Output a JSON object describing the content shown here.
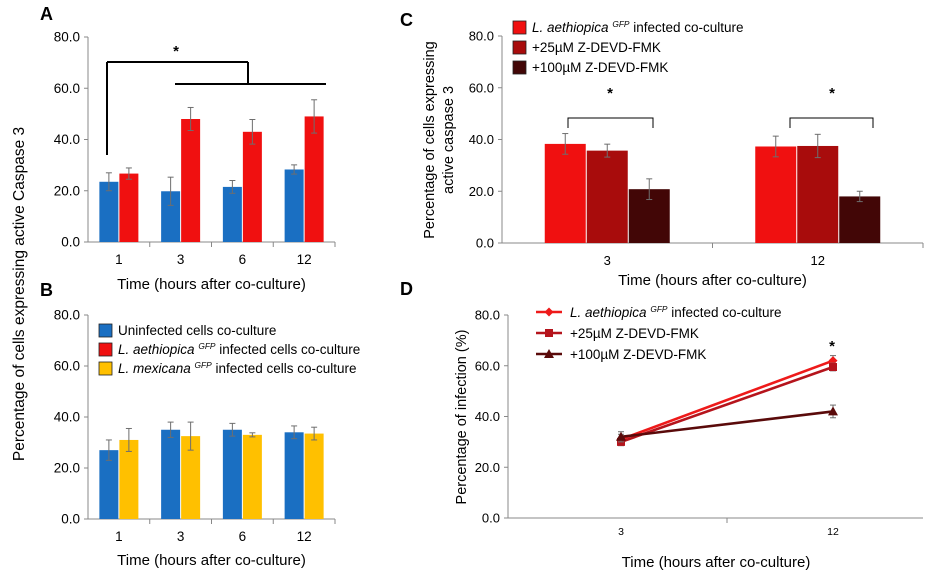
{
  "figure": {
    "panel_letters": [
      "A",
      "B",
      "C",
      "D"
    ],
    "shared_ylabel": "Percentage of cells expressing active Caspase 3"
  },
  "colors": {
    "uninfected": "#1a6fc2",
    "infected": "#f01010",
    "mexicana": "#ffc000",
    "z25": "#a80c0c",
    "z100": "#420606",
    "line_red": "#ee1a1a",
    "line_dark_red": "#b5141c",
    "line_darkest": "#5a0a0a",
    "axis": "#888888",
    "error": "#6e6e6e"
  },
  "chart_data": [
    {
      "panel": "A",
      "type": "bar",
      "categories": [
        "1",
        "3",
        "6",
        "12"
      ],
      "xlabel": "Time (hours after co-culture)",
      "ylabel": "",
      "ylim": [
        0,
        80
      ],
      "yticks": [
        "0.0",
        "20.0",
        "40.0",
        "60.0",
        "80.0"
      ],
      "grid": false,
      "legend": "none",
      "series": [
        {
          "name": "",
          "color_key": "uninfected",
          "values": [
            23.5,
            19.8,
            21.5,
            28.3
          ],
          "errors": [
            3.5,
            5.5,
            2.5,
            1.8
          ]
        },
        {
          "name": "",
          "color_key": "infected",
          "values": [
            26.7,
            48.0,
            43.0,
            49.0
          ],
          "errors": [
            2.2,
            4.5,
            4.8,
            6.5
          ]
        }
      ],
      "annotations": [
        "*"
      ]
    },
    {
      "panel": "B",
      "type": "bar",
      "categories": [
        "1",
        "3",
        "6",
        "12"
      ],
      "xlabel": "Time (hours after co-culture)",
      "ylabel": "",
      "ylim": [
        0,
        80
      ],
      "yticks": [
        "0.0",
        "20.0",
        "40.0",
        "60.0",
        "80.0"
      ],
      "grid": false,
      "legend": "top-left",
      "legend_entries": [
        {
          "pre": "Uninfected cells co-culture",
          "sup": "",
          "post": "",
          "color_key": "uninfected"
        },
        {
          "pre": "L. aethiopica ",
          "sup": "GFP",
          "post": " infected cells co-culture",
          "color_key": "infected"
        },
        {
          "pre": "L. mexicana ",
          "sup": "GFP",
          "post": " infected cells co-culture",
          "color_key": "mexicana"
        }
      ],
      "series": [
        {
          "name": "Uninfected cells co-culture",
          "color_key": "uninfected",
          "values": [
            27.0,
            35.0,
            35.0,
            34.0
          ],
          "errors": [
            4.0,
            3.0,
            2.5,
            2.5
          ]
        },
        {
          "name": "L. mexicana GFP infected cells co-culture",
          "color_key": "mexicana",
          "values": [
            31.0,
            32.5,
            33.0,
            33.5
          ],
          "errors": [
            4.5,
            5.5,
            0.8,
            2.5
          ]
        }
      ]
    },
    {
      "panel": "C",
      "type": "bar",
      "categories": [
        "3",
        "12"
      ],
      "xlabel": "Time (hours after co-culture)",
      "ylabel": "Percentage of cells expressing active caspase 3",
      "ylim": [
        0,
        80
      ],
      "yticks": [
        "0.0",
        "20.0",
        "40.0",
        "60.0",
        "80.0"
      ],
      "grid": false,
      "legend": "top-left",
      "legend_entries": [
        {
          "pre": "L. aethiopica ",
          "sup": "GFP",
          "post": " infected co-culture",
          "color_key": "infected"
        },
        {
          "pre": "+25µM Z-DEVD-FMK",
          "sup": "",
          "post": "",
          "color_key": "z25"
        },
        {
          "pre": "+100µM Z-DEVD-FMK",
          "sup": "",
          "post": "",
          "color_key": "z100"
        }
      ],
      "series": [
        {
          "name": "L. aethiopica GFP infected co-culture",
          "color_key": "infected",
          "values": [
            38.3,
            37.3
          ],
          "errors": [
            4.0,
            4.0
          ]
        },
        {
          "name": "+25µM Z-DEVD-FMK",
          "color_key": "z25",
          "values": [
            35.7,
            37.5
          ],
          "errors": [
            2.5,
            4.5
          ]
        },
        {
          "name": "+100µM Z-DEVD-FMK",
          "color_key": "z100",
          "values": [
            20.8,
            18.0
          ],
          "errors": [
            4.0,
            2.0
          ]
        }
      ],
      "annotations": [
        "*",
        "*"
      ]
    },
    {
      "panel": "D",
      "type": "line",
      "x": [
        "3",
        "12"
      ],
      "xlabel": "Time (hours after co-culture)",
      "ylabel": "Percentage of infection (%)",
      "ylim": [
        0,
        80
      ],
      "yticks": [
        "0.0",
        "20.0",
        "40.0",
        "60.0",
        "80.0"
      ],
      "grid": false,
      "legend": "top-left",
      "legend_entries": [
        {
          "pre": "L. aethiopica ",
          "sup": "GFP",
          "post": " infected co-culture",
          "color_key": "line_red",
          "marker": "diamond"
        },
        {
          "pre": "+25µM Z-DEVD-FMK",
          "sup": "",
          "post": "",
          "color_key": "line_dark_red",
          "marker": "square"
        },
        {
          "pre": "+100µM Z-DEVD-FMK",
          "sup": "",
          "post": "",
          "color_key": "line_darkest",
          "marker": "triangle"
        }
      ],
      "series": [
        {
          "name": "L. aethiopica GFP infected co-culture",
          "color_key": "line_red",
          "marker": "diamond",
          "values": [
            31.0,
            62.0
          ],
          "errors": [
            2.0,
            2.0
          ]
        },
        {
          "name": "+25µM Z-DEVD-FMK",
          "color_key": "line_dark_red",
          "marker": "square",
          "values": [
            30.0,
            59.5
          ],
          "errors": [
            1.5,
            1.5
          ]
        },
        {
          "name": "+100µM Z-DEVD-FMK",
          "color_key": "line_darkest",
          "marker": "triangle",
          "values": [
            32.0,
            42.0
          ],
          "errors": [
            2.0,
            2.5
          ]
        }
      ],
      "annotations": [
        "*"
      ]
    }
  ]
}
